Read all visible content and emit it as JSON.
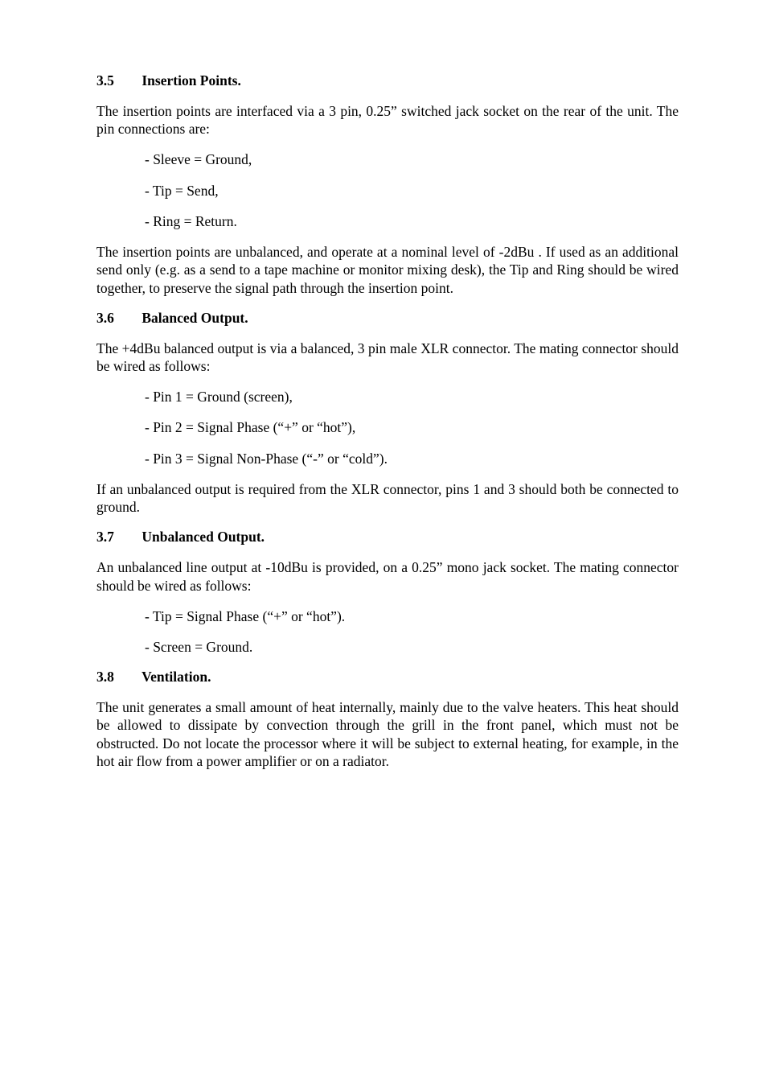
{
  "sections": {
    "s35": {
      "num": "3.5",
      "title": "Insertion Points.",
      "p1": "The insertion points are interfaced via a 3 pin, 0.25” switched jack socket on the rear of the unit.  The pin connections are:",
      "items": {
        "i1": "- Sleeve =  Ground,",
        "i2": "- Tip =  Send,",
        "i3": "- Ring =  Return."
      },
      "p2": "The insertion points are unbalanced, and operate at a nominal level of  -2dBu . If used as an additional send only (e.g. as a send to a tape machine or monitor mixing desk), the Tip and Ring should be wired together, to preserve the signal path through the insertion point."
    },
    "s36": {
      "num": "3.6",
      "title": "Balanced Output.",
      "p1": "The +4dBu balanced output is via a balanced, 3 pin male XLR connector.  The mating connector should be wired as follows:",
      "items": {
        "i1": "- Pin 1 =  Ground (screen),",
        "i2": "- Pin 2 =  Signal Phase (“+” or “hot”),",
        "i3": "- Pin 3 =  Signal Non-Phase (“-” or  “cold”)."
      },
      "p2": "If an unbalanced output is required from the XLR connector, pins 1 and 3 should both be connected to ground."
    },
    "s37": {
      "num": "3.7",
      "title": "Unbalanced Output.",
      "p1": "An unbalanced line output at -10dBu is provided, on a 0.25” mono jack socket. The mating connector should be wired as follows:",
      "items": {
        "i1": "- Tip =        Signal Phase (“+” or  “hot”).",
        "i2": "- Screen =  Ground."
      }
    },
    "s38": {
      "num": "3.8",
      "title": "Ventilation.",
      "p1": "The unit generates a small amount of heat internally, mainly due to the valve heaters. This heat should be allowed to dissipate by convection through the grill in the front panel, which must not be obstructed.  Do not locate the processor where it will be subject to external heating, for example, in the hot air flow from a power amplifier or on a radiator."
    }
  }
}
